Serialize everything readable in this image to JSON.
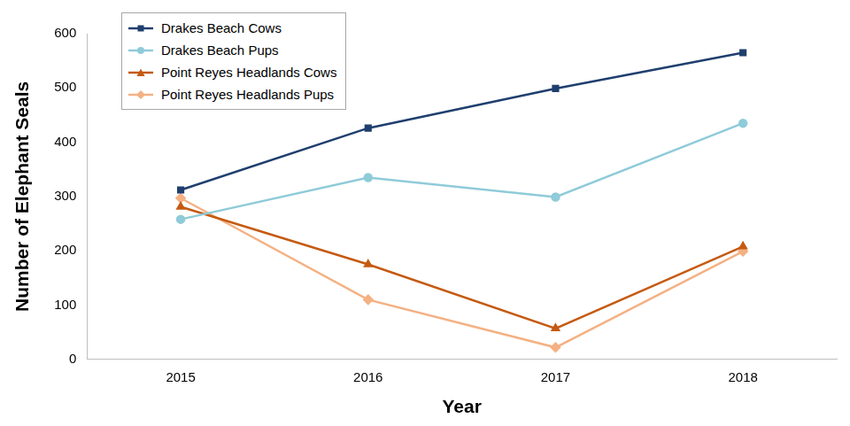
{
  "chart_data": {
    "type": "line",
    "x_label": "Year",
    "y_label": "Number of Elephant Seals",
    "categories": [
      "2015",
      "2016",
      "2017",
      "2018"
    ],
    "series": [
      {
        "name": "Drakes Beach Cows",
        "color": "#1f3f6e",
        "marker": "square",
        "values": [
          312,
          426,
          499,
          565
        ]
      },
      {
        "name": "Drakes Beach Pups",
        "color": "#8fcbd9",
        "marker": "circle",
        "values": [
          258,
          335,
          299,
          435
        ]
      },
      {
        "name": "Point Reyes Headlands Cows",
        "color": "#c55a11",
        "marker": "triangle",
        "values": [
          281,
          175,
          57,
          208
        ]
      },
      {
        "name": "Point Reyes Headlands Pups",
        "color": "#f4b183",
        "marker": "diamond",
        "values": [
          297,
          110,
          22,
          199
        ]
      }
    ],
    "ylim": [
      0,
      600
    ],
    "yticks": [
      0,
      100,
      200,
      300,
      400,
      500,
      600
    ],
    "grid": false,
    "legend": "top-left"
  }
}
